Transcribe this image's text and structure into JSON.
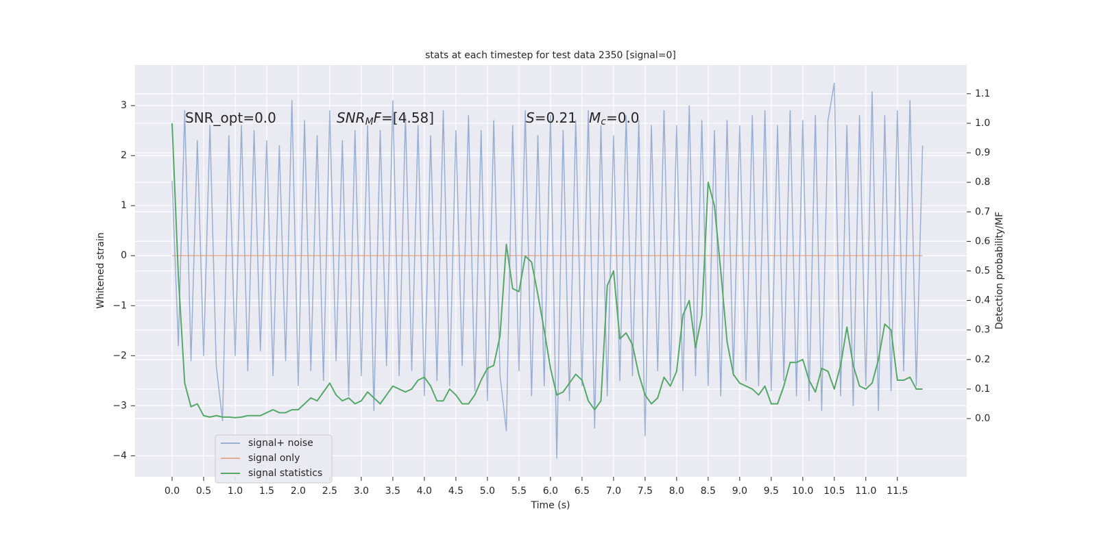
{
  "chart_data": {
    "type": "line",
    "title": "stats at each timestep for test data 2350 [signal=0]",
    "xlabel": "Time (s)",
    "ylabel": "Whitened strain",
    "y2label": "Detection probability/MF",
    "grid": true,
    "legend": "lower left",
    "xlim": [
      -0.587,
      12.6
    ],
    "ylim": [
      -4.42,
      3.81
    ],
    "y2lim": [
      -0.197,
      1.197
    ],
    "xticks": [
      {
        "value": 0,
        "label": "0.0"
      },
      0.5,
      {
        "value": 1,
        "label": "1.0"
      },
      1.5,
      {
        "value": 2,
        "label": "2.0"
      },
      2.5,
      {
        "value": 3,
        "label": "3.0"
      },
      3.5,
      {
        "value": 4,
        "label": "4.0"
      },
      4.5,
      {
        "value": 5,
        "label": "5.0"
      },
      5.5,
      {
        "value": 6,
        "label": "6.0"
      },
      6.5,
      {
        "value": 7,
        "label": "7.0"
      },
      7.5,
      {
        "value": 8,
        "label": "8.0"
      },
      8.5,
      {
        "value": 9,
        "label": "9.0"
      },
      9.5,
      {
        "value": 10,
        "label": "10.0"
      },
      10.5,
      {
        "value": 11,
        "label": "11.0"
      },
      11.5
    ],
    "yticks": [
      {
        "value": -4,
        "label": "−4"
      },
      {
        "value": -3,
        "label": "−3"
      },
      {
        "value": -2,
        "label": "−2"
      },
      {
        "value": -1,
        "label": "−1"
      },
      0,
      1,
      2,
      3
    ],
    "y2ticks": [
      {
        "value": 0,
        "label": "0.0"
      },
      0.1,
      0.2,
      0.3,
      0.4,
      0.5,
      0.6,
      0.7,
      0.8,
      0.9,
      {
        "value": 1,
        "label": "1.0"
      },
      1.1
    ],
    "annotations": [
      [
        {
          "text": "SNR_opt=0.0",
          "style": "normal"
        }
      ],
      [
        {
          "text": "SNR",
          "style": "italic"
        },
        {
          "text": "M",
          "style": "sub"
        },
        {
          "text": "F",
          "style": "italic"
        },
        {
          "text": "=[4.58]",
          "style": "normal"
        }
      ],
      [
        {
          "text": "S",
          "style": "italic"
        },
        {
          "text": "=0.21",
          "style": "normal"
        }
      ],
      [
        {
          "text": "M",
          "style": "italic"
        },
        {
          "text": "c",
          "style": "sub"
        },
        {
          "text": "=0.0",
          "style": "normal"
        }
      ]
    ],
    "x": [
      0,
      0.1,
      0.2,
      0.3,
      0.4,
      0.5,
      0.6,
      0.7,
      0.8,
      0.9,
      1,
      1.1,
      1.2,
      1.3,
      1.4,
      1.5,
      1.6,
      1.7,
      1.8,
      1.9,
      2,
      2.1,
      2.2,
      2.3,
      2.4,
      2.5,
      2.6,
      2.7,
      2.8,
      2.9,
      3,
      3.1,
      3.2,
      3.3,
      3.4,
      3.5,
      3.6,
      3.7,
      3.8,
      3.9,
      4,
      4.1,
      4.2,
      4.3,
      4.4,
      4.5,
      4.6,
      4.7,
      4.8,
      4.9,
      5,
      5.1,
      5.2,
      5.3,
      5.4,
      5.5,
      5.6,
      5.7,
      5.8,
      5.9,
      6,
      6.1,
      6.2,
      6.3,
      6.4,
      6.5,
      6.6,
      6.7,
      6.8,
      6.9,
      7,
      7.1,
      7.2,
      7.3,
      7.4,
      7.5,
      7.6,
      7.7,
      7.8,
      7.9,
      8,
      8.1,
      8.2,
      8.3,
      8.4,
      8.5,
      8.6,
      8.7,
      8.8,
      8.9,
      9,
      9.1,
      9.2,
      9.3,
      9.4,
      9.5,
      9.6,
      9.7,
      9.8,
      9.9,
      10,
      10.1,
      10.2,
      10.3,
      10.4,
      10.5,
      10.6,
      10.7,
      10.8,
      10.9,
      11,
      11.1,
      11.2,
      11.3,
      11.4,
      11.5,
      11.6,
      11.7,
      11.8,
      11.9
    ],
    "series": [
      {
        "name": "signal+ noise",
        "color": "#4c72b0",
        "opacity": 0.5,
        "axis": "y",
        "values": [
          1.5,
          -1.8,
          2.9,
          -2.1,
          2.3,
          -2.0,
          2.6,
          -2.2,
          -3.3,
          2.4,
          -2.0,
          2.6,
          -2.3,
          2.5,
          -1.9,
          2.3,
          -2.4,
          2.2,
          -2.1,
          3.1,
          -2.6,
          2.7,
          -2.3,
          2.4,
          -2.5,
          2.9,
          -2.1,
          2.3,
          -2.8,
          2.5,
          -2.4,
          2.6,
          -3.1,
          2.5,
          -2.2,
          3.1,
          -2.4,
          2.8,
          -2.3,
          2.6,
          -2.8,
          2.4,
          -2.5,
          2.9,
          -2.6,
          2.5,
          -2.2,
          2.8,
          -2.7,
          2.5,
          -2.9,
          2.7,
          -2.4,
          -3.5,
          2.6,
          -2.3,
          2.9,
          -2.8,
          2.4,
          -2.6,
          2.8,
          -4.05,
          2.5,
          -2.9,
          2.7,
          -2.6,
          2.9,
          -3.45,
          2.6,
          -2.8,
          2.4,
          -2.5,
          2.8,
          -2.4,
          2.7,
          -3.6,
          2.6,
          -2.3,
          2.9,
          -2.5,
          2.6,
          -2.7,
          3.0,
          -2.4,
          2.7,
          -2.6,
          2.5,
          -2.8,
          2.7,
          -2.4,
          2.6,
          -2.5,
          2.8,
          -2.6,
          2.9,
          -2.7,
          2.6,
          -2.5,
          2.9,
          -2.8,
          2.7,
          -2.9,
          2.8,
          -3.1,
          2.7,
          3.45,
          -2.8,
          2.6,
          -3.0,
          2.8,
          -2.6,
          3.28,
          -3.1,
          2.8,
          -2.7,
          2.9,
          -2.3,
          3.1,
          -2.6,
          2.2
        ]
      },
      {
        "name": "signal only",
        "color": "#dd8452",
        "opacity": 0.6,
        "axis": "y",
        "values": [
          0,
          0,
          0,
          0,
          0,
          0,
          0,
          0,
          0,
          0,
          0,
          0,
          0,
          0,
          0,
          0,
          0,
          0,
          0,
          0,
          0,
          0,
          0,
          0,
          0,
          0,
          0,
          0,
          0,
          0,
          0,
          0,
          0,
          0,
          0,
          0,
          0,
          0,
          0,
          0,
          0,
          0,
          0,
          0,
          0,
          0,
          0,
          0,
          0,
          0,
          0,
          0,
          0,
          0,
          0,
          0,
          0,
          0,
          0,
          0,
          0,
          0,
          0,
          0,
          0,
          0,
          0,
          0,
          0,
          0,
          0,
          0,
          0,
          0,
          0,
          0,
          0,
          0,
          0,
          0,
          0,
          0,
          0,
          0,
          0,
          0,
          0,
          0,
          0,
          0,
          0,
          0,
          0,
          0,
          0,
          0,
          0,
          0,
          0,
          0,
          0,
          0,
          0,
          0,
          0,
          0,
          0,
          0,
          0,
          0,
          0,
          0,
          0,
          0,
          0,
          0,
          0,
          0,
          0,
          0
        ]
      },
      {
        "name": "signal statistics",
        "color": "#55a868",
        "opacity": 1,
        "axis": "y2",
        "values": [
          1.0,
          0.48,
          0.12,
          0.04,
          0.05,
          0.01,
          0.005,
          0.01,
          0.005,
          0.005,
          0.003,
          0.005,
          0.01,
          0.01,
          0.01,
          0.02,
          0.03,
          0.02,
          0.02,
          0.03,
          0.03,
          0.05,
          0.07,
          0.06,
          0.09,
          0.12,
          0.08,
          0.06,
          0.07,
          0.05,
          0.06,
          0.09,
          0.07,
          0.05,
          0.08,
          0.11,
          0.1,
          0.09,
          0.1,
          0.13,
          0.14,
          0.11,
          0.06,
          0.06,
          0.1,
          0.08,
          0.05,
          0.05,
          0.08,
          0.13,
          0.17,
          0.18,
          0.28,
          0.59,
          0.44,
          0.43,
          0.55,
          0.53,
          0.42,
          0.3,
          0.17,
          0.08,
          0.09,
          0.12,
          0.15,
          0.13,
          0.06,
          0.03,
          0.06,
          0.45,
          0.5,
          0.27,
          0.29,
          0.25,
          0.15,
          0.08,
          0.05,
          0.07,
          0.14,
          0.11,
          0.16,
          0.35,
          0.4,
          0.24,
          0.35,
          0.8,
          0.72,
          0.5,
          0.26,
          0.15,
          0.12,
          0.11,
          0.1,
          0.08,
          0.11,
          0.05,
          0.05,
          0.11,
          0.19,
          0.19,
          0.2,
          0.13,
          0.09,
          0.17,
          0.16,
          0.1,
          0.18,
          0.31,
          0.18,
          0.11,
          0.1,
          0.12,
          0.2,
          0.32,
          0.3,
          0.13,
          0.13,
          0.14,
          0.1,
          0.1
        ]
      }
    ]
  }
}
